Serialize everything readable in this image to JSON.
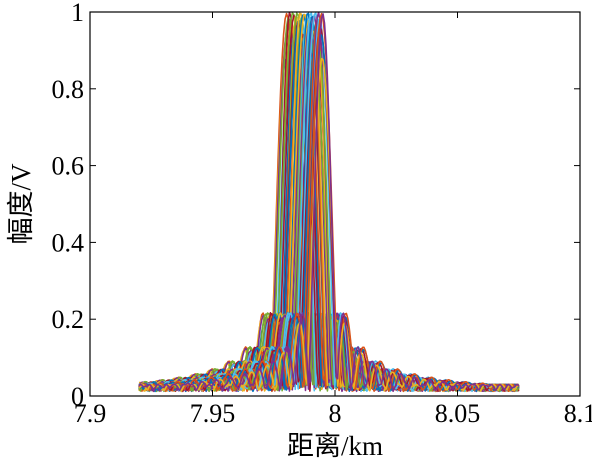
{
  "chart_data": {
    "type": "line",
    "title": "",
    "xlabel": "距离/km",
    "ylabel": "幅度/V",
    "xlim": [
      7.9,
      8.1
    ],
    "ylim": [
      0,
      1
    ],
    "x_ticks": [
      7.9,
      7.95,
      8.0,
      8.05,
      8.1
    ],
    "x_tick_labels": [
      "7.9",
      "7.95",
      "8",
      "8.05",
      "8.1"
    ],
    "y_ticks": [
      0,
      0.2,
      0.4,
      0.6,
      0.8,
      1.0
    ],
    "y_tick_labels": [
      "0",
      "0.2",
      "0.4",
      "0.6",
      "0.8",
      "1"
    ],
    "grid": false,
    "legend": "none",
    "description_series": {
      "count": 60,
      "x_start": 7.92,
      "x_end": 8.075,
      "peak_center_range": [
        7.98,
        7.995
      ],
      "peak_max": 1.0,
      "sidelobe_level": 0.2,
      "floor_level": 0.03
    },
    "palette": [
      "#0072BD",
      "#D95319",
      "#EDB120",
      "#7E2F8E",
      "#77AC30",
      "#4DBEEE",
      "#A2142F"
    ]
  }
}
